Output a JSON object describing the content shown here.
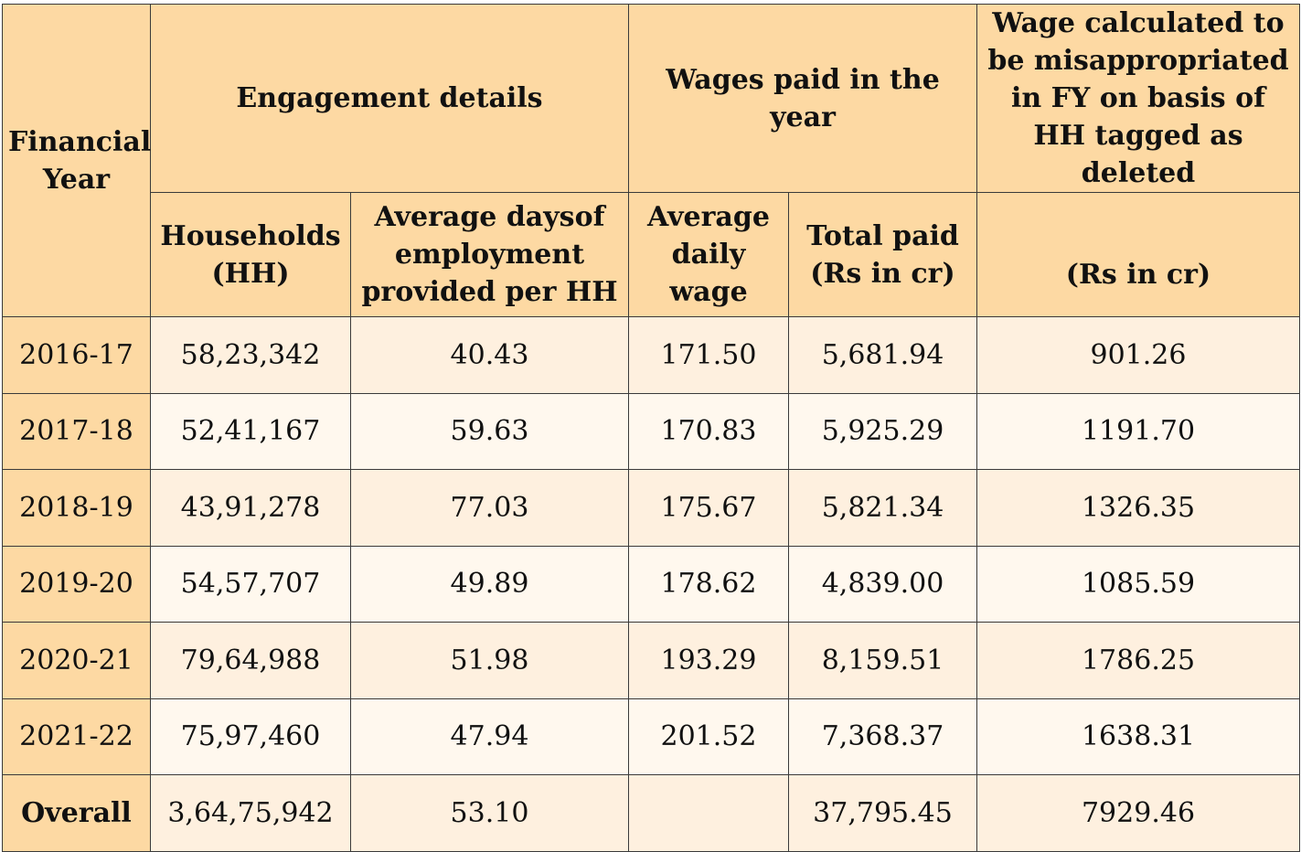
{
  "header": {
    "financial_year": "Financial Year",
    "engagement_details": "Engagement details",
    "wages_paid": "Wages paid in the year",
    "misappropriated": "Wage calculated to be misappropriated in FY on basis of HH tagged as deleted",
    "households": "Households (HH)",
    "avg_days": "Average daysof employment provided per HH",
    "avg_daily_wage": "Average daily wage",
    "total_paid": "Total paid (Rs in cr)",
    "rs_in_cr": "(Rs in cr)"
  },
  "rows": [
    {
      "year": "2016-17",
      "households": "58,23,342",
      "avg_days": "40.43",
      "avg_wage": "171.50",
      "total_paid": "5,681.94",
      "misappropriated": "901.26"
    },
    {
      "year": "2017-18",
      "households": "52,41,167",
      "avg_days": "59.63",
      "avg_wage": "170.83",
      "total_paid": "5,925.29",
      "misappropriated": "1191.70"
    },
    {
      "year": "2018-19",
      "households": "43,91,278",
      "avg_days": "77.03",
      "avg_wage": "175.67",
      "total_paid": "5,821.34",
      "misappropriated": "1326.35"
    },
    {
      "year": "2019-20",
      "households": "54,57,707",
      "avg_days": "49.89",
      "avg_wage": "178.62",
      "total_paid": "4,839.00",
      "misappropriated": "1085.59"
    },
    {
      "year": "2020-21",
      "households": "79,64,988",
      "avg_days": "51.98",
      "avg_wage": "193.29",
      "total_paid": "8,159.51",
      "misappropriated": "1786.25"
    },
    {
      "year": "2021-22",
      "households": "75,97,460",
      "avg_days": "47.94",
      "avg_wage": "201.52",
      "total_paid": "7,368.37",
      "misappropriated": "1638.31"
    }
  ],
  "total": {
    "year": "Overall",
    "households": "3,64,75,942",
    "avg_days": "53.10",
    "avg_wage": "",
    "total_paid": "37,795.45",
    "misappropriated": "7929.46"
  },
  "colors": {
    "header_bg": "#fdd9a3",
    "row_light": "#fff8ee",
    "row_tint": "#fef0df",
    "border": "#3a3a3a"
  }
}
